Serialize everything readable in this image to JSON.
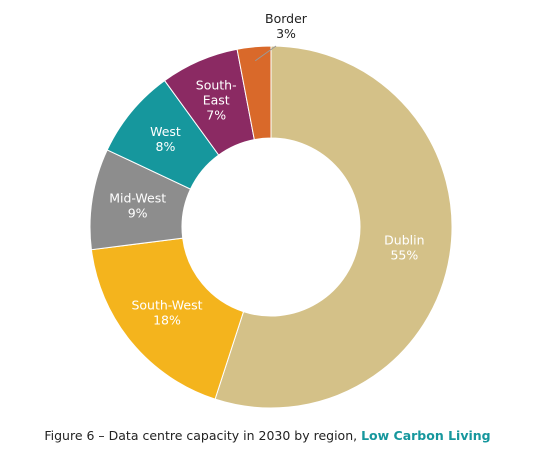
{
  "colors": {
    "Dublin": "#d4c188",
    "South-West": "#f4b41d",
    "Mid-West": "#8d8d8d",
    "West": "#16979d",
    "South-East": "#8b2a63",
    "Border": "#d9692a",
    "source": "#16979d"
  },
  "caption": {
    "text": "Figure 6 – Data centre capacity in 2030 by region, ",
    "source": "Low Carbon Living"
  },
  "chart_data": {
    "type": "pie",
    "donut": true,
    "categories": [
      "Dublin",
      "South-West",
      "Mid-West",
      "West",
      "South-East",
      "Border"
    ],
    "values": [
      55,
      18,
      9,
      8,
      7,
      3
    ],
    "unit": "%",
    "label_lines": [
      [
        "Dublin",
        "55%"
      ],
      [
        "South-West",
        "18%"
      ],
      [
        "Mid-West",
        "9%"
      ],
      [
        "West",
        "8%"
      ],
      [
        "South-",
        "East",
        "7%"
      ],
      [
        "Border",
        "3%"
      ]
    ]
  }
}
